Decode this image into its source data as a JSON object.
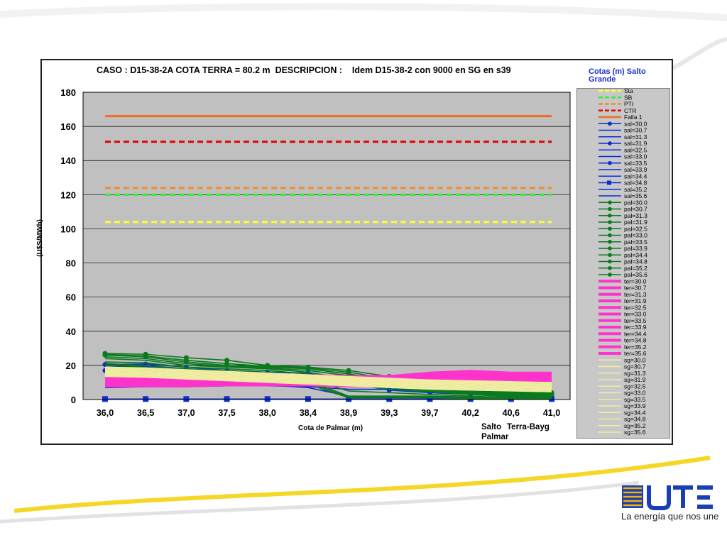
{
  "chart_data": {
    "type": "line",
    "title": "CASO : D15-38-2A COTA TERRA = 80.2 m  DESCRIPCION :    Idem D15-38-2 con 9000 en SG en s39",
    "xlabel": "Cota de Palmar (m)",
    "ylabel": "(U$S/MWh)",
    "ylim": [
      0,
      180
    ],
    "y_ticks": [
      "0",
      "20",
      "40",
      "60",
      "80",
      "100",
      "120",
      "140",
      "160",
      "180"
    ],
    "categories": [
      "36,0",
      "36,5",
      "37,0",
      "37,5",
      "38,0",
      "38,4",
      "38,9",
      "39,3",
      "39,7",
      "40,2",
      "40,6",
      "41,0"
    ],
    "grid": true,
    "legend_title": "Cotas (m) Salto Grande",
    "legend_position": "right",
    "reference_series": [
      {
        "name": "Sta",
        "value": 104,
        "color": "#ffff33",
        "style": "dashed"
      },
      {
        "name": "SB",
        "value": 120,
        "color": "#33ee33",
        "style": "dashed"
      },
      {
        "name": "PTI",
        "value": 124,
        "color": "#f28c28",
        "style": "dashed"
      },
      {
        "name": "CTR",
        "value": 151,
        "color": "#e00000",
        "style": "dashed"
      },
      {
        "name": "Falla 1",
        "value": 166,
        "color": "#f26b1d",
        "style": "solid"
      }
    ],
    "series_groups": [
      {
        "prefix": "sal",
        "color": "#0a2bd6",
        "levels": [
          "30.0",
          "30.7",
          "31.3",
          "31.9",
          "32.5",
          "33.0",
          "33.5",
          "33.9",
          "34.4",
          "34.8",
          "35.2",
          "35.6"
        ],
        "series": [
          [
            20.5,
            20.8,
            19,
            17,
            16,
            15.5,
            10,
            5.5,
            4,
            3,
            2,
            1.5
          ],
          [
            19,
            19.5,
            18,
            16.5,
            15.5,
            14.5,
            10.5,
            6,
            4.5,
            3.5,
            2.5,
            2
          ],
          [
            18,
            18.5,
            17.5,
            16,
            15,
            14,
            11,
            7,
            5,
            4,
            3,
            2.5
          ],
          [
            17,
            17.5,
            16.5,
            15.5,
            14.5,
            13.5,
            11.5,
            8,
            6,
            5,
            4,
            3
          ],
          [
            16,
            16.5,
            16,
            15,
            14,
            13,
            12,
            9,
            7,
            6,
            5,
            4
          ],
          [
            14,
            15,
            14.5,
            14,
            13.5,
            12.5,
            11.5,
            9.5,
            8,
            7,
            6,
            5
          ],
          [
            12,
            13,
            13,
            13,
            12.5,
            12,
            11,
            10,
            8.5,
            8,
            7,
            6
          ],
          [
            11,
            11.5,
            11.5,
            11.5,
            11.5,
            11,
            10.5,
            10,
            9,
            8.5,
            8,
            7
          ],
          [
            9,
            9.5,
            10,
            10,
            10,
            10,
            10,
            9.5,
            9,
            9,
            8.5,
            8
          ],
          [
            0.3,
            0.3,
            0.3,
            0.3,
            0.3,
            0.3,
            0.3,
            0.3,
            0.3,
            0.3,
            0.3,
            0.3
          ],
          [
            8,
            8.5,
            8.5,
            8.5,
            8.5,
            7,
            2,
            1.5,
            1,
            1,
            1,
            1
          ],
          [
            7,
            7.5,
            7.5,
            8,
            8,
            7.5,
            6,
            6,
            6,
            6,
            5.5,
            5.5
          ]
        ]
      },
      {
        "prefix": "pal",
        "color": "#0b7a1e",
        "levels": [
          "30.0",
          "30.7",
          "31.3",
          "31.9",
          "32.5",
          "33.0",
          "33.5",
          "33.9",
          "34.4",
          "34.8",
          "35.2",
          "35.6"
        ],
        "series": [
          [
            27,
            26.5,
            24.5,
            23,
            20,
            19,
            17,
            13.5,
            10,
            7,
            5,
            4
          ],
          [
            26.5,
            25.5,
            23,
            21,
            19.5,
            18.5,
            16,
            12,
            9,
            6.5,
            4.5,
            3.5
          ],
          [
            26,
            25,
            22,
            20,
            19,
            18,
            15,
            11,
            8,
            6,
            4,
            3
          ],
          [
            25,
            24,
            21,
            19.5,
            18.5,
            17,
            14,
            10,
            7,
            5,
            3.5,
            2.5
          ],
          [
            24,
            23,
            20,
            19,
            18,
            16,
            12,
            9,
            6,
            4.5,
            3,
            2
          ],
          [
            22,
            21.5,
            19,
            18,
            17,
            15,
            11,
            8,
            5.5,
            4,
            2.5,
            1.5
          ],
          [
            21,
            20,
            18,
            17,
            16,
            14,
            10,
            7,
            5,
            3.5,
            2,
            1
          ],
          [
            20,
            19,
            17,
            16,
            15,
            13,
            9,
            6,
            4.5,
            3,
            1.5,
            1
          ],
          [
            19,
            18,
            16,
            15,
            14,
            12,
            5,
            4,
            3,
            2,
            1,
            1
          ],
          [
            18,
            17,
            15,
            14,
            13,
            11,
            2,
            2,
            2,
            1.5,
            1,
            0.5
          ],
          [
            17,
            16,
            14,
            13,
            12,
            10,
            1.5,
            1.5,
            1.5,
            1,
            0.5,
            0.5
          ],
          [
            16,
            15,
            13,
            12,
            11,
            9,
            1,
            1,
            1,
            0.5,
            0.5,
            0.5
          ]
        ]
      },
      {
        "prefix": "ter",
        "color": "#ff33cc",
        "levels": [
          "30.0",
          "30.7",
          "31.3",
          "31.9",
          "32.5",
          "33.0",
          "33.5",
          "33.9",
          "34.4",
          "34.8",
          "35.2",
          "35.6"
        ],
        "series": [
          [
            14.5,
            14.5,
            14.5,
            14,
            14,
            14,
            13.5,
            13.5,
            15.5,
            16.5,
            15.5,
            15.5
          ],
          [
            13.8,
            13.8,
            13.8,
            13.5,
            13.5,
            13.5,
            13,
            13,
            15,
            16,
            15,
            15
          ],
          [
            13.2,
            13.2,
            13.2,
            13,
            13,
            13,
            12.5,
            12.5,
            14.5,
            15.5,
            14.5,
            14.5
          ],
          [
            12.6,
            12.6,
            12.6,
            12.5,
            12.5,
            12.5,
            12,
            12,
            14,
            15,
            14,
            14
          ],
          [
            12,
            12,
            12,
            12,
            12,
            12,
            11.5,
            11.5,
            13.5,
            14.5,
            13.5,
            13.5
          ],
          [
            11.4,
            11.4,
            11.4,
            11.5,
            11.5,
            11.5,
            11,
            11,
            13,
            14,
            13,
            13
          ],
          [
            10.8,
            10.8,
            10.8,
            11,
            11,
            11,
            10.5,
            10.5,
            12.5,
            13.5,
            12.5,
            12.5
          ],
          [
            10.2,
            10.2,
            10.2,
            10.5,
            10.5,
            10.5,
            10,
            10,
            12,
            13,
            12,
            12
          ],
          [
            9.6,
            9.6,
            9.6,
            10,
            10,
            10,
            9.5,
            9.5,
            11.5,
            12.5,
            11.5,
            11.5
          ],
          [
            9,
            9,
            9,
            9.5,
            9.5,
            9.5,
            9,
            9,
            11,
            12,
            11,
            11
          ],
          [
            8.4,
            8.4,
            8.4,
            9,
            9,
            9,
            8.5,
            8.5,
            10.5,
            11.5,
            10.5,
            10.5
          ],
          [
            8,
            8,
            8,
            8.5,
            8.5,
            8.5,
            8,
            8,
            10,
            11,
            10,
            10
          ]
        ]
      },
      {
        "prefix": "sg",
        "color": "#f0eea0",
        "levels": [
          "30.0",
          "30.7",
          "31.3",
          "31.9",
          "32.5",
          "33.0",
          "33.5",
          "33.9",
          "34.4",
          "34.8",
          "35.2",
          "35.6"
        ],
        "series": [
          [
            19,
            18.5,
            17.5,
            16.5,
            15.5,
            14.5,
            13.5,
            12.5,
            11.5,
            11,
            10.5,
            10
          ],
          [
            18.5,
            18,
            17,
            16,
            15,
            14,
            13,
            12,
            11,
            10.5,
            10,
            9.5
          ],
          [
            18,
            17.5,
            16.5,
            15.5,
            14.5,
            13.5,
            12.5,
            11.5,
            10.5,
            10,
            9.5,
            9
          ],
          [
            17.5,
            17,
            16,
            15,
            14,
            13,
            12,
            11,
            10,
            9.5,
            9,
            8.5
          ],
          [
            17,
            16.5,
            15.5,
            14.5,
            13.5,
            12.5,
            11.5,
            10.5,
            9.5,
            9,
            8.5,
            8
          ],
          [
            16.5,
            16,
            15,
            14,
            13,
            12,
            11,
            10,
            9,
            8.5,
            8,
            7.5
          ],
          [
            16,
            15.5,
            14.5,
            13.5,
            12.5,
            11.5,
            10.5,
            9.5,
            8.5,
            8,
            7.5,
            7
          ],
          [
            15.5,
            15,
            14,
            13,
            12,
            11,
            10,
            9,
            8,
            7.5,
            7,
            6.5
          ],
          [
            15,
            14.5,
            13.5,
            12.5,
            11.5,
            10.5,
            9.5,
            8.5,
            7.5,
            7,
            6.5,
            6
          ],
          [
            14.5,
            14,
            13,
            12,
            11,
            10,
            9,
            8,
            7,
            6.5,
            6,
            5.5
          ],
          [
            14,
            13.5,
            12.5,
            11.5,
            10.5,
            9.5,
            8.5,
            7.5,
            6.5,
            6,
            5.5,
            5
          ],
          [
            13.5,
            13,
            12,
            11,
            10,
            9,
            8,
            7,
            6,
            5.5,
            5,
            4.5
          ]
        ]
      }
    ],
    "plot_labels": [
      {
        "text": "Salto",
        "color": "#1a2fcf"
      },
      {
        "text": "Terra-Bayg",
        "color": "#ff33cc"
      },
      {
        "text": "Palmar",
        "color": "#0b7a1e"
      }
    ]
  },
  "branding": {
    "logo_word": "UTE",
    "tagline": "La energía que nos une",
    "logo_colors": [
      "#f5b400",
      "#1a3fb5"
    ]
  }
}
